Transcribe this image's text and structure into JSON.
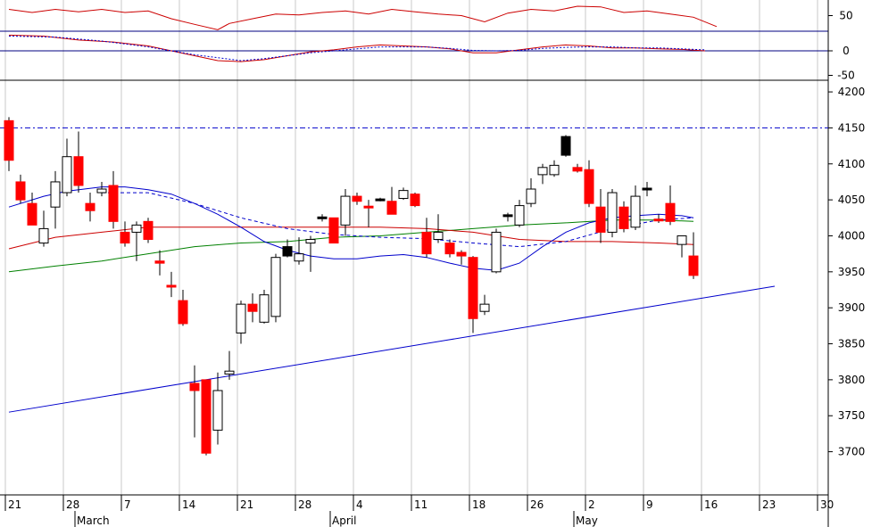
{
  "chart_data": {
    "type": "candlestick",
    "colors": {
      "up_body": "#ffffff",
      "down_body": "#ff0000",
      "black_body": "#000000",
      "ma_short": "#0000cc",
      "ma_mid": "#008000",
      "ma_long": "#cc0000",
      "trendline": "#0000cc",
      "resistance": "#0000cc",
      "indicator": "#cc0000",
      "signal": "#0000cc",
      "grid": "#c8c8c8"
    },
    "price_axis": {
      "ylim": [
        3640,
        4210
      ],
      "ticks": [
        3700,
        3750,
        3800,
        3850,
        3900,
        3950,
        4000,
        4050,
        4100,
        4150,
        4200
      ],
      "tick_labels": [
        "3700",
        "3750",
        "3800",
        "3850",
        "3900",
        "3950",
        "4000",
        "4050",
        "4100",
        "4150",
        "4200"
      ]
    },
    "oscillator_axis": {
      "ylim": [
        0,
        100
      ],
      "ticks": [
        50
      ],
      "tick_labels": [
        "50"
      ],
      "levels": [
        30
      ]
    },
    "macd_axis": {
      "ylim": [
        -60,
        40
      ],
      "ticks": [
        0,
        -50
      ],
      "tick_labels": [
        "0",
        "-50"
      ]
    },
    "x_axis": {
      "day_labels": [
        "21",
        "28",
        "7",
        "14",
        "21",
        "28",
        "4",
        "11",
        "18",
        "26",
        "2",
        "9",
        "16",
        "23",
        "30"
      ],
      "day_label_index": [
        0,
        5,
        10,
        15,
        20,
        25,
        30,
        35,
        40,
        45,
        50,
        55,
        60,
        65,
        70
      ],
      "month_labels": [
        "March",
        "April",
        "May"
      ],
      "month_label_index": [
        6,
        28,
        49
      ],
      "total_slots": 72
    },
    "candles": [
      {
        "i": 0,
        "o": 4160,
        "h": 4165,
        "l": 4090,
        "c": 4105,
        "k": "down"
      },
      {
        "i": 1,
        "o": 4075,
        "h": 4085,
        "l": 4045,
        "c": 4050,
        "k": "down"
      },
      {
        "i": 2,
        "o": 4045,
        "h": 4060,
        "l": 4015,
        "c": 4015,
        "k": "down"
      },
      {
        "i": 3,
        "o": 3990,
        "h": 4035,
        "l": 3985,
        "c": 4010,
        "k": "up"
      },
      {
        "i": 4,
        "o": 4040,
        "h": 4090,
        "l": 4010,
        "c": 4075,
        "k": "up"
      },
      {
        "i": 5,
        "o": 4060,
        "h": 4135,
        "l": 4055,
        "c": 4110,
        "k": "up"
      },
      {
        "i": 6,
        "o": 4110,
        "h": 4145,
        "l": 4060,
        "c": 4070,
        "k": "down"
      },
      {
        "i": 7,
        "o": 4045,
        "h": 4060,
        "l": 4020,
        "c": 4035,
        "k": "down"
      },
      {
        "i": 8,
        "o": 4060,
        "h": 4075,
        "l": 4055,
        "c": 4065,
        "k": "up"
      },
      {
        "i": 9,
        "o": 4070,
        "h": 4090,
        "l": 4010,
        "c": 4020,
        "k": "down"
      },
      {
        "i": 10,
        "o": 4005,
        "h": 4020,
        "l": 3985,
        "c": 3990,
        "k": "down"
      },
      {
        "i": 11,
        "o": 4005,
        "h": 4020,
        "l": 3965,
        "c": 4015,
        "k": "up"
      },
      {
        "i": 12,
        "o": 4020,
        "h": 4025,
        "l": 3990,
        "c": 3995,
        "k": "down"
      },
      {
        "i": 13,
        "o": 3965,
        "h": 3980,
        "l": 3945,
        "c": 3962,
        "k": "down"
      },
      {
        "i": 14,
        "o": 3930,
        "h": 3950,
        "l": 3915,
        "c": 3928,
        "k": "down"
      },
      {
        "i": 15,
        "o": 3910,
        "h": 3925,
        "l": 3875,
        "c": 3878,
        "k": "down"
      },
      {
        "i": 16,
        "o": 3795,
        "h": 3820,
        "l": 3720,
        "c": 3785,
        "k": "down"
      },
      {
        "i": 17,
        "o": 3800,
        "h": 3800,
        "l": 3695,
        "c": 3698,
        "k": "down"
      },
      {
        "i": 18,
        "o": 3730,
        "h": 3810,
        "l": 3710,
        "c": 3785,
        "k": "up"
      },
      {
        "i": 19,
        "o": 3808,
        "h": 3840,
        "l": 3800,
        "c": 3812,
        "k": "up"
      },
      {
        "i": 20,
        "o": 3865,
        "h": 3910,
        "l": 3850,
        "c": 3905,
        "k": "up"
      },
      {
        "i": 21,
        "o": 3905,
        "h": 3920,
        "l": 3880,
        "c": 3895,
        "k": "down"
      },
      {
        "i": 22,
        "o": 3880,
        "h": 3925,
        "l": 3878,
        "c": 3918,
        "k": "up"
      },
      {
        "i": 23,
        "o": 3888,
        "h": 3975,
        "l": 3880,
        "c": 3970,
        "k": "up"
      },
      {
        "i": 24,
        "o": 3985,
        "h": 3995,
        "l": 3970,
        "c": 3972,
        "k": "black"
      },
      {
        "i": 25,
        "o": 3965,
        "h": 3998,
        "l": 3960,
        "c": 3975,
        "k": "up"
      },
      {
        "i": 26,
        "o": 3990,
        "h": 4000,
        "l": 3950,
        "c": 3995,
        "k": "up"
      },
      {
        "i": 27,
        "o": 4025,
        "h": 4030,
        "l": 4020,
        "c": 4025,
        "k": "black"
      },
      {
        "i": 28,
        "o": 4025,
        "h": 4025,
        "l": 3990,
        "c": 3990,
        "k": "down"
      },
      {
        "i": 29,
        "o": 4015,
        "h": 4065,
        "l": 4000,
        "c": 4055,
        "k": "up"
      },
      {
        "i": 30,
        "o": 4055,
        "h": 4060,
        "l": 4043,
        "c": 4048,
        "k": "down"
      },
      {
        "i": 31,
        "o": 4038,
        "h": 4050,
        "l": 4012,
        "c": 4040,
        "k": "down"
      },
      {
        "i": 32,
        "o": 4050,
        "h": 4053,
        "l": 4048,
        "c": 4050,
        "k": "black"
      },
      {
        "i": 33,
        "o": 4048,
        "h": 4068,
        "l": 4030,
        "c": 4030,
        "k": "down"
      },
      {
        "i": 34,
        "o": 4052,
        "h": 4067,
        "l": 4050,
        "c": 4063,
        "k": "up"
      },
      {
        "i": 35,
        "o": 4058,
        "h": 4060,
        "l": 4040,
        "c": 4042,
        "k": "down"
      },
      {
        "i": 36,
        "o": 4005,
        "h": 4025,
        "l": 3970,
        "c": 3975,
        "k": "down"
      },
      {
        "i": 37,
        "o": 3995,
        "h": 4030,
        "l": 3990,
        "c": 4005,
        "k": "up"
      },
      {
        "i": 38,
        "o": 3990,
        "h": 3995,
        "l": 3970,
        "c": 3975,
        "k": "down"
      },
      {
        "i": 39,
        "o": 3977,
        "h": 3980,
        "l": 3960,
        "c": 3972,
        "k": "down"
      },
      {
        "i": 40,
        "o": 3970,
        "h": 3972,
        "l": 3865,
        "c": 3885,
        "k": "down"
      },
      {
        "i": 41,
        "o": 3895,
        "h": 3918,
        "l": 3890,
        "c": 3905,
        "k": "up"
      },
      {
        "i": 42,
        "o": 3950,
        "h": 4010,
        "l": 3948,
        "c": 4005,
        "k": "up"
      },
      {
        "i": 43,
        "o": 4027,
        "h": 4032,
        "l": 4020,
        "c": 4028,
        "k": "black"
      },
      {
        "i": 44,
        "o": 4015,
        "h": 4050,
        "l": 4012,
        "c": 4042,
        "k": "up"
      },
      {
        "i": 45,
        "o": 4045,
        "h": 4080,
        "l": 4040,
        "c": 4065,
        "k": "up"
      },
      {
        "i": 46,
        "o": 4085,
        "h": 4100,
        "l": 4072,
        "c": 4095,
        "k": "up"
      },
      {
        "i": 47,
        "o": 4085,
        "h": 4105,
        "l": 4082,
        "c": 4098,
        "k": "up"
      },
      {
        "i": 48,
        "o": 4138,
        "h": 4140,
        "l": 4110,
        "c": 4112,
        "k": "black"
      },
      {
        "i": 49,
        "o": 4095,
        "h": 4100,
        "l": 4088,
        "c": 4090,
        "k": "down"
      },
      {
        "i": 50,
        "o": 4092,
        "h": 4105,
        "l": 4040,
        "c": 4045,
        "k": "down"
      },
      {
        "i": 51,
        "o": 4040,
        "h": 4065,
        "l": 3990,
        "c": 4005,
        "k": "down"
      },
      {
        "i": 52,
        "o": 4005,
        "h": 4065,
        "l": 3998,
        "c": 4060,
        "k": "up"
      },
      {
        "i": 53,
        "o": 4040,
        "h": 4048,
        "l": 4005,
        "c": 4010,
        "k": "down"
      },
      {
        "i": 54,
        "o": 4012,
        "h": 4070,
        "l": 4008,
        "c": 4055,
        "k": "up"
      },
      {
        "i": 55,
        "o": 4065,
        "h": 4075,
        "l": 4055,
        "c": 4063,
        "k": "black"
      },
      {
        "i": 56,
        "o": 4022,
        "h": 4030,
        "l": 4018,
        "c": 4020,
        "k": "down"
      },
      {
        "i": 57,
        "o": 4045,
        "h": 4070,
        "l": 4015,
        "c": 4020,
        "k": "down"
      },
      {
        "i": 58,
        "o": 3988,
        "h": 4000,
        "l": 3970,
        "c": 4000,
        "k": "up"
      },
      {
        "i": 59,
        "o": 3972,
        "h": 4005,
        "l": 3940,
        "c": 3945,
        "k": "down"
      }
    ],
    "ma_short": [
      [
        0,
        4040
      ],
      [
        3,
        4055
      ],
      [
        5,
        4062
      ],
      [
        8,
        4068
      ],
      [
        10,
        4068
      ],
      [
        12,
        4064
      ],
      [
        14,
        4058
      ],
      [
        16,
        4045
      ],
      [
        18,
        4030
      ],
      [
        20,
        4012
      ],
      [
        22,
        3992
      ],
      [
        24,
        3980
      ],
      [
        26,
        3972
      ],
      [
        28,
        3968
      ],
      [
        30,
        3968
      ],
      [
        32,
        3972
      ],
      [
        34,
        3974
      ],
      [
        36,
        3970
      ],
      [
        38,
        3962
      ],
      [
        40,
        3955
      ],
      [
        42,
        3952
      ],
      [
        44,
        3962
      ],
      [
        46,
        3985
      ],
      [
        48,
        4005
      ],
      [
        50,
        4018
      ],
      [
        52,
        4025
      ],
      [
        54,
        4028
      ],
      [
        56,
        4030
      ],
      [
        58,
        4028
      ],
      [
        59,
        4025
      ]
    ],
    "ma_short_dashed": [
      [
        8,
        4060
      ],
      [
        12,
        4060
      ],
      [
        16,
        4045
      ],
      [
        20,
        4025
      ],
      [
        24,
        4010
      ],
      [
        28,
        4002
      ],
      [
        32,
        3998
      ],
      [
        36,
        3996
      ],
      [
        40,
        3990
      ],
      [
        44,
        3985
      ],
      [
        48,
        3992
      ],
      [
        52,
        4010
      ],
      [
        56,
        4022
      ],
      [
        59,
        4025
      ]
    ],
    "ma_mid": [
      [
        0,
        3950
      ],
      [
        4,
        3958
      ],
      [
        8,
        3965
      ],
      [
        12,
        3975
      ],
      [
        16,
        3985
      ],
      [
        20,
        3990
      ],
      [
        24,
        3992
      ],
      [
        28,
        3998
      ],
      [
        32,
        4000
      ],
      [
        36,
        4005
      ],
      [
        40,
        4010
      ],
      [
        44,
        4015
      ],
      [
        48,
        4018
      ],
      [
        52,
        4022
      ],
      [
        56,
        4022
      ],
      [
        59,
        4020
      ]
    ],
    "ma_long": [
      [
        0,
        3982
      ],
      [
        4,
        3998
      ],
      [
        8,
        4005
      ],
      [
        12,
        4012
      ],
      [
        16,
        4012
      ],
      [
        20,
        4012
      ],
      [
        24,
        4012
      ],
      [
        28,
        4012
      ],
      [
        32,
        4012
      ],
      [
        36,
        4010
      ],
      [
        40,
        4005
      ],
      [
        44,
        3995
      ],
      [
        48,
        3992
      ],
      [
        52,
        3992
      ],
      [
        56,
        3990
      ],
      [
        59,
        3988
      ]
    ],
    "trendline": [
      [
        0,
        3755
      ],
      [
        66,
        3930
      ]
    ],
    "resistance": 4150,
    "oscillator": [
      [
        0,
        70
      ],
      [
        2,
        60
      ],
      [
        4,
        70
      ],
      [
        6,
        62
      ],
      [
        8,
        70
      ],
      [
        10,
        60
      ],
      [
        12,
        65
      ],
      [
        14,
        40
      ],
      [
        16,
        22
      ],
      [
        18,
        5
      ],
      [
        19,
        25
      ],
      [
        21,
        40
      ],
      [
        23,
        55
      ],
      [
        25,
        52
      ],
      [
        27,
        60
      ],
      [
        29,
        65
      ],
      [
        31,
        55
      ],
      [
        33,
        70
      ],
      [
        35,
        62
      ],
      [
        37,
        55
      ],
      [
        39,
        50
      ],
      [
        41,
        30
      ],
      [
        43,
        58
      ],
      [
        45,
        70
      ],
      [
        47,
        65
      ],
      [
        49,
        80
      ],
      [
        51,
        78
      ],
      [
        53,
        60
      ],
      [
        55,
        65
      ],
      [
        57,
        55
      ],
      [
        59,
        45
      ],
      [
        61,
        15
      ]
    ],
    "macd": [
      [
        0,
        32
      ],
      [
        3,
        30
      ],
      [
        6,
        22
      ],
      [
        9,
        18
      ],
      [
        12,
        10
      ],
      [
        15,
        -5
      ],
      [
        18,
        -20
      ],
      [
        20,
        -22
      ],
      [
        22,
        -18
      ],
      [
        24,
        -10
      ],
      [
        26,
        -2
      ],
      [
        28,
        2
      ],
      [
        30,
        8
      ],
      [
        32,
        12
      ],
      [
        34,
        10
      ],
      [
        36,
        8
      ],
      [
        38,
        4
      ],
      [
        40,
        -4
      ],
      [
        42,
        -4
      ],
      [
        44,
        2
      ],
      [
        46,
        8
      ],
      [
        48,
        12
      ],
      [
        50,
        10
      ],
      [
        52,
        6
      ],
      [
        54,
        6
      ],
      [
        56,
        4
      ],
      [
        58,
        3
      ],
      [
        60,
        0
      ]
    ],
    "macd_signal": [
      [
        0,
        30
      ],
      [
        4,
        28
      ],
      [
        8,
        20
      ],
      [
        12,
        8
      ],
      [
        16,
        -8
      ],
      [
        18,
        -14
      ],
      [
        20,
        -20
      ],
      [
        22,
        -16
      ],
      [
        24,
        -10
      ],
      [
        26,
        -4
      ],
      [
        28,
        0
      ],
      [
        30,
        4
      ],
      [
        32,
        8
      ],
      [
        34,
        8
      ],
      [
        36,
        8
      ],
      [
        38,
        5
      ],
      [
        40,
        1
      ],
      [
        42,
        0
      ],
      [
        44,
        1
      ],
      [
        46,
        5
      ],
      [
        48,
        7
      ],
      [
        50,
        8
      ],
      [
        52,
        8
      ],
      [
        54,
        6
      ],
      [
        56,
        6
      ],
      [
        58,
        4
      ],
      [
        60,
        2
      ]
    ]
  }
}
